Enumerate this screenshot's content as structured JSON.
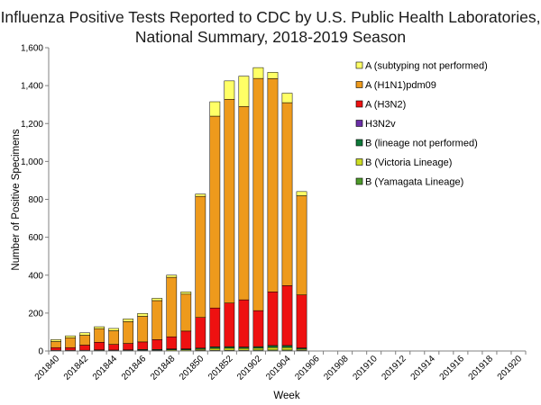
{
  "chart_data": {
    "type": "bar",
    "stacked": true,
    "title_lines": [
      "Influenza Positive Tests Reported to CDC by U.S. Public Health Laboratories,",
      "National Summary, 2018-2019 Season"
    ],
    "xlabel": "Week",
    "ylabel": "Number of Positive Specimens",
    "ylim": [
      0,
      1600
    ],
    "yticks": [
      0,
      200,
      400,
      600,
      800,
      1000,
      1200,
      1400,
      1600
    ],
    "ytick_labels": [
      "0",
      "200",
      "400",
      "600",
      "800",
      "1,000",
      "1,200",
      "1,400",
      "1,600"
    ],
    "categories": [
      "201840",
      "201841",
      "201842",
      "201843",
      "201844",
      "201845",
      "201846",
      "201847",
      "201848",
      "201849",
      "201850",
      "201851",
      "201852",
      "201901",
      "201902",
      "201903",
      "201904",
      "201905",
      "201906",
      "201907",
      "201908",
      "201909",
      "201910",
      "201911",
      "201912",
      "201913",
      "201914",
      "201915",
      "201916",
      "201917",
      "201918",
      "201919",
      "201920"
    ],
    "x_tick_labels": [
      "201840",
      "201842",
      "201844",
      "201846",
      "201848",
      "201850",
      "201852",
      "201902",
      "201904",
      "201906",
      "201908",
      "201910",
      "201912",
      "201914",
      "201916",
      "201918",
      "201920"
    ],
    "series": [
      {
        "name": "B (Yamagata Lineage)",
        "color": "#4E9A2A",
        "values": [
          1,
          1,
          1,
          1,
          1,
          1,
          1,
          1,
          2,
          2,
          3,
          4,
          4,
          4,
          5,
          5,
          5,
          4,
          0,
          0,
          0,
          0,
          0,
          0,
          0,
          0,
          0,
          0,
          0,
          0,
          0,
          0,
          0
        ]
      },
      {
        "name": "B (Victoria Lineage)",
        "color": "#CCDD22",
        "values": [
          1,
          1,
          1,
          2,
          2,
          2,
          3,
          3,
          4,
          4,
          6,
          10,
          11,
          10,
          10,
          14,
          14,
          6,
          0,
          0,
          0,
          0,
          0,
          0,
          0,
          0,
          0,
          0,
          0,
          0,
          0,
          0,
          0
        ]
      },
      {
        "name": "B (lineage not performed)",
        "color": "#0F7A3A",
        "values": [
          2,
          2,
          2,
          3,
          2,
          3,
          4,
          4,
          5,
          5,
          6,
          8,
          8,
          7,
          8,
          10,
          10,
          6,
          0,
          0,
          0,
          0,
          0,
          0,
          0,
          0,
          0,
          0,
          0,
          0,
          0,
          0,
          0
        ]
      },
      {
        "name": "H3N2v",
        "color": "#6B2FA8",
        "values": [
          0,
          0,
          0,
          0,
          0,
          0,
          0,
          0,
          0,
          0,
          0,
          0,
          0,
          0,
          0,
          0,
          0,
          0,
          0,
          0,
          0,
          0,
          0,
          0,
          0,
          0,
          0,
          0,
          0,
          0,
          0,
          0,
          0
        ]
      },
      {
        "name": "A (H3N2)",
        "color": "#EE1111",
        "values": [
          14,
          14,
          27,
          40,
          30,
          34,
          40,
          52,
          64,
          94,
          162,
          205,
          230,
          249,
          190,
          283,
          316,
          280,
          0,
          0,
          0,
          0,
          0,
          0,
          0,
          0,
          0,
          0,
          0,
          0,
          0,
          0,
          0
        ]
      },
      {
        "name": "A (H1N1)pdm09",
        "color": "#EE9A1C",
        "values": [
          32,
          52,
          52,
          72,
          72,
          115,
          135,
          206,
          314,
          195,
          639,
          1012,
          1075,
          1020,
          1225,
          1125,
          965,
          523,
          0,
          0,
          0,
          0,
          0,
          0,
          0,
          0,
          0,
          0,
          0,
          0,
          0,
          0,
          0
        ]
      },
      {
        "name": "A (subtyping not performed)",
        "color": "#FFFF66",
        "values": [
          10,
          10,
          13,
          10,
          12,
          14,
          15,
          12,
          11,
          12,
          12,
          76,
          97,
          160,
          57,
          33,
          50,
          22,
          0,
          0,
          0,
          0,
          0,
          0,
          0,
          0,
          0,
          0,
          0,
          0,
          0,
          0,
          0
        ]
      }
    ],
    "legend_order": [
      "A (subtyping not performed)",
      "A (H1N1)pdm09",
      "A (H3N2)",
      "H3N2v",
      "B (lineage not performed)",
      "B (Victoria Lineage)",
      "B (Yamagata Lineage)"
    ],
    "legend_position": "top-right",
    "grid": false
  }
}
